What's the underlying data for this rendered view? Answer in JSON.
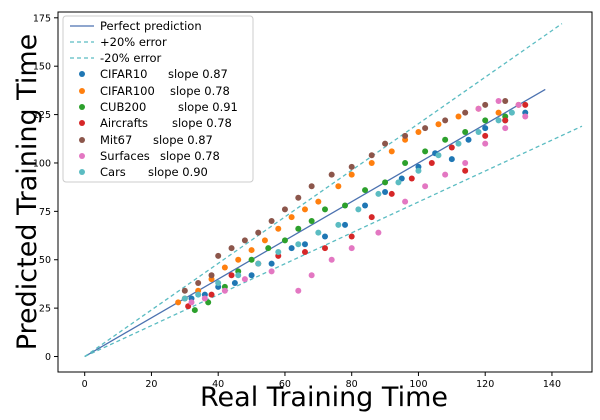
{
  "chart_data": {
    "type": "scatter",
    "xlabel": "Real Training Time",
    "ylabel": "Predicted Training Time",
    "xlim": [
      -8,
      152
    ],
    "ylim": [
      -8,
      178
    ],
    "xticks": [
      0,
      20,
      40,
      60,
      80,
      100,
      120,
      140
    ],
    "yticks": [
      0,
      25,
      50,
      75,
      100,
      125,
      150,
      175
    ],
    "grid": false,
    "legend_position": "top-left",
    "lines": [
      {
        "name": "Perfect prediction",
        "x": [
          0,
          138
        ],
        "y": [
          0,
          138
        ],
        "color": "#4c72b0",
        "style": "solid"
      },
      {
        "name": "+20% error",
        "x": [
          0,
          143
        ],
        "y": [
          0,
          172
        ],
        "color": "#5bbcc2",
        "style": "dashed"
      },
      {
        "name": "-20% error",
        "x": [
          0,
          149
        ],
        "y": [
          0,
          119
        ],
        "color": "#5bbcc2",
        "style": "dashed"
      }
    ],
    "series": [
      {
        "name": "CIFAR10",
        "slope_label": "slope 0.87",
        "color": "#1f77b4",
        "points": [
          [
            32,
            30
          ],
          [
            36,
            32
          ],
          [
            40,
            36
          ],
          [
            45,
            38
          ],
          [
            50,
            42
          ],
          [
            56,
            48
          ],
          [
            62,
            56
          ],
          [
            66,
            58
          ],
          [
            72,
            62
          ],
          [
            78,
            68
          ],
          [
            84,
            78
          ],
          [
            90,
            85
          ],
          [
            95,
            92
          ],
          [
            100,
            98
          ],
          [
            105,
            105
          ],
          [
            110,
            102
          ],
          [
            115,
            112
          ],
          [
            120,
            118
          ],
          [
            126,
            122
          ],
          [
            132,
            126
          ]
        ]
      },
      {
        "name": "CIFAR100",
        "slope_label": "slope 0.78",
        "color": "#ff7f0e",
        "points": [
          [
            28,
            28
          ],
          [
            30,
            30
          ],
          [
            34,
            34
          ],
          [
            38,
            40
          ],
          [
            42,
            46
          ],
          [
            46,
            50
          ],
          [
            50,
            55
          ],
          [
            54,
            60
          ],
          [
            58,
            66
          ],
          [
            62,
            72
          ],
          [
            66,
            76
          ],
          [
            70,
            80
          ],
          [
            76,
            88
          ],
          [
            80,
            94
          ],
          [
            86,
            100
          ],
          [
            92,
            106
          ],
          [
            96,
            112
          ],
          [
            100,
            116
          ],
          [
            106,
            120
          ],
          [
            112,
            124
          ],
          [
            118,
            128
          ],
          [
            124,
            126
          ],
          [
            130,
            130
          ]
        ]
      },
      {
        "name": "CUB200",
        "slope_label": "slope 0.91",
        "color": "#2ca02c",
        "points": [
          [
            33,
            24
          ],
          [
            37,
            28
          ],
          [
            42,
            36
          ],
          [
            46,
            44
          ],
          [
            50,
            50
          ],
          [
            55,
            56
          ],
          [
            60,
            60
          ],
          [
            64,
            66
          ],
          [
            68,
            70
          ],
          [
            72,
            76
          ],
          [
            78,
            78
          ],
          [
            84,
            86
          ],
          [
            90,
            90
          ],
          [
            96,
            100
          ],
          [
            102,
            106
          ],
          [
            108,
            112
          ],
          [
            114,
            116
          ],
          [
            120,
            122
          ],
          [
            126,
            124
          ]
        ]
      },
      {
        "name": "Aircrafts",
        "slope_label": "slope 0.78",
        "color": "#d62728",
        "points": [
          [
            31,
            26
          ],
          [
            38,
            32
          ],
          [
            44,
            42
          ],
          [
            52,
            48
          ],
          [
            58,
            52
          ],
          [
            66,
            54
          ],
          [
            72,
            56
          ],
          [
            80,
            62
          ],
          [
            86,
            72
          ],
          [
            92,
            84
          ],
          [
            98,
            92
          ],
          [
            104,
            100
          ],
          [
            110,
            108
          ],
          [
            114,
            96
          ],
          [
            120,
            114
          ],
          [
            126,
            122
          ],
          [
            132,
            130
          ]
        ]
      },
      {
        "name": "Mit67",
        "slope_label": "slope 0.87",
        "color": "#8c564b",
        "points": [
          [
            30,
            34
          ],
          [
            34,
            38
          ],
          [
            38,
            42
          ],
          [
            40,
            52
          ],
          [
            44,
            56
          ],
          [
            48,
            60
          ],
          [
            52,
            64
          ],
          [
            56,
            70
          ],
          [
            60,
            76
          ],
          [
            64,
            82
          ],
          [
            68,
            88
          ],
          [
            74,
            94
          ],
          [
            80,
            98
          ],
          [
            86,
            104
          ],
          [
            90,
            110
          ],
          [
            96,
            114
          ],
          [
            102,
            118
          ],
          [
            108,
            122
          ],
          [
            114,
            126
          ],
          [
            120,
            130
          ],
          [
            126,
            132
          ]
        ]
      },
      {
        "name": "Surfaces",
        "slope_label": "slope 0.78",
        "color": "#e377c2",
        "points": [
          [
            32,
            28
          ],
          [
            36,
            30
          ],
          [
            42,
            34
          ],
          [
            48,
            40
          ],
          [
            56,
            44
          ],
          [
            64,
            34
          ],
          [
            68,
            42
          ],
          [
            74,
            50
          ],
          [
            80,
            56
          ],
          [
            88,
            64
          ],
          [
            96,
            80
          ],
          [
            102,
            88
          ],
          [
            108,
            94
          ],
          [
            114,
            100
          ],
          [
            120,
            110
          ],
          [
            126,
            118
          ],
          [
            132,
            124
          ],
          [
            124,
            132
          ],
          [
            130,
            130
          ],
          [
            118,
            128
          ]
        ]
      },
      {
        "name": "Cars",
        "slope_label": "slope 0.90",
        "color": "#5bbcc2",
        "points": [
          [
            30,
            30
          ],
          [
            34,
            32
          ],
          [
            40,
            38
          ],
          [
            46,
            42
          ],
          [
            52,
            48
          ],
          [
            58,
            54
          ],
          [
            64,
            58
          ],
          [
            70,
            64
          ],
          [
            76,
            68
          ],
          [
            82,
            76
          ],
          [
            88,
            84
          ],
          [
            94,
            90
          ],
          [
            100,
            96
          ],
          [
            106,
            104
          ],
          [
            112,
            110
          ],
          [
            118,
            116
          ],
          [
            124,
            122
          ],
          [
            128,
            126
          ]
        ]
      }
    ]
  },
  "legend": {
    "perfect": "Perfect prediction",
    "plus20": "+20% error",
    "minus20": "-20% error",
    "entries": [
      {
        "label": "CIFAR10",
        "slope": "slope 0.87"
      },
      {
        "label": "CIFAR100",
        "slope": "slope 0.78"
      },
      {
        "label": "CUB200",
        "slope": "slope 0.91"
      },
      {
        "label": "Aircrafts",
        "slope": "slope 0.78"
      },
      {
        "label": "Mit67",
        "slope": "slope 0.87"
      },
      {
        "label": "Surfaces",
        "slope": "slope 0.78"
      },
      {
        "label": "Cars",
        "slope": "slope 0.90"
      }
    ]
  }
}
